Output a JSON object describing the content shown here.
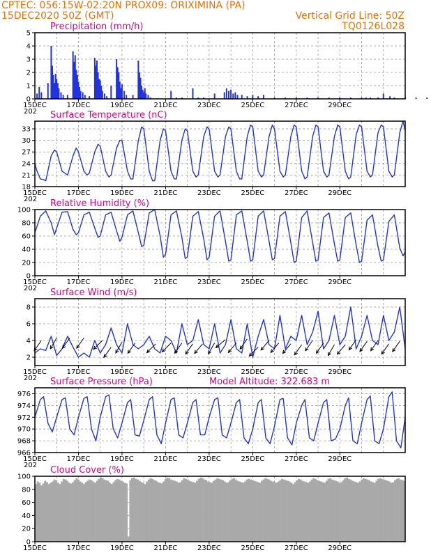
{
  "header": {
    "line1_left": "CPTEC:   056:15W-02:20N   PROX09: ORIXIMINA (PA)",
    "line2_left": "15DEC2020 50Z (GMT)",
    "line2_right": "Vertical Grid Line: 50Z",
    "line3_right": "TQ0126L028"
  },
  "colors": {
    "header": "#f07000",
    "panel_title": "#e0007f",
    "series": "#2233dd",
    "cloud": "#a9a9a9",
    "wind_arrow": "#000000"
  },
  "date_labels": [
    "15DEC",
    "17DEC",
    "19DEC",
    "21DEC",
    "23DEC",
    "25DEC",
    "27DEC",
    "29DEC"
  ],
  "year_fragment": "202",
  "panels": [
    {
      "id": "precip",
      "title": "Precipitation (mm/h)",
      "extra": ""
    },
    {
      "id": "temp",
      "title": "Surface Temperature (nC)",
      "extra": ""
    },
    {
      "id": "rh",
      "title": "Relative Humidity (%)",
      "extra": ""
    },
    {
      "id": "wind",
      "title": "Surface Wind (m/s)",
      "extra": ""
    },
    {
      "id": "pres",
      "title": "Surface Pressure (hPa)",
      "extra": "Model Altitude: 322.683 m"
    },
    {
      "id": "cloud",
      "title": "Cloud Cover (%)",
      "extra": ""
    }
  ],
  "chart_data": [
    {
      "type": "bar",
      "title": "Precipitation (mm/h)",
      "xlabel": "",
      "ylabel": "",
      "x_unit": "days since 15DEC2020 00Z",
      "ylim": [
        0,
        5
      ],
      "yticks": [
        0,
        1,
        2,
        3,
        4,
        5
      ],
      "x": [
        0.1,
        0.2,
        0.3,
        0.6,
        0.75,
        0.8,
        0.85,
        0.9,
        0.95,
        1.0,
        1.05,
        1.1,
        1.2,
        1.3,
        1.5,
        1.75,
        1.8,
        1.85,
        1.9,
        1.95,
        2.0,
        2.05,
        2.1,
        2.2,
        2.3,
        2.5,
        2.75,
        2.8,
        2.85,
        2.9,
        2.95,
        3.0,
        3.05,
        3.1,
        3.2,
        3.3,
        3.5,
        3.75,
        3.8,
        3.85,
        3.9,
        3.95,
        4.0,
        4.1,
        4.2,
        4.5,
        4.75,
        4.8,
        4.85,
        4.9,
        4.95,
        5.0,
        5.05,
        5.1,
        5.2,
        5.3,
        6.25,
        6.5,
        6.75,
        7.25,
        7.5,
        7.75,
        8.25,
        8.7,
        8.8,
        8.9,
        9.0,
        9.1,
        9.2,
        9.3,
        9.5,
        9.75,
        10.0,
        10.25,
        10.5,
        11.0,
        11.5,
        12.0,
        12.5,
        13.0,
        13.5,
        14.0,
        14.5,
        15.0,
        15.2,
        15.4,
        15.75,
        16.0,
        16.3,
        16.5,
        17.0,
        17.5,
        18.0,
        18.5,
        18.6,
        18.7
      ],
      "values": [
        0.4,
        0.9,
        0.5,
        1.2,
        4.0,
        2.5,
        1.8,
        1.2,
        1.9,
        1.5,
        1.2,
        0.8,
        0.5,
        0.3,
        0.3,
        3.6,
        2.8,
        3.3,
        2.2,
        1.8,
        1.3,
        0.9,
        0.6,
        0.5,
        0.3,
        0.2,
        3.1,
        2.5,
        2.9,
        2.0,
        1.5,
        1.4,
        1.0,
        0.6,
        0.4,
        0.2,
        1.0,
        3.0,
        2.4,
        2.0,
        1.3,
        0.8,
        1.1,
        0.6,
        0.3,
        0.3,
        2.9,
        2.0,
        1.6,
        1.0,
        0.7,
        0.5,
        0.8,
        0.4,
        0.3,
        0.1,
        0.6,
        0.1,
        0.1,
        0.8,
        0.1,
        0.1,
        0.4,
        0.5,
        0.8,
        0.6,
        0.7,
        0.4,
        0.5,
        0.3,
        0.3,
        0.2,
        0.3,
        0.2,
        0.3,
        0.1,
        0.1,
        0.1,
        0.1,
        0.1,
        0.1,
        0.1,
        0.1,
        0.1,
        0.1,
        0.1,
        0.1,
        0.4,
        0.2,
        0.1,
        0.1,
        0.1,
        0.1,
        0.4,
        0.9,
        0.5
      ]
    },
    {
      "type": "line",
      "title": "Surface Temperature (nC)",
      "xlabel": "",
      "ylabel": "",
      "x_unit": "days since 15DEC2020 00Z",
      "ylim": [
        18,
        35
      ],
      "yticks": [
        18,
        21,
        24,
        27,
        30,
        33
      ],
      "x": [
        0,
        0.1,
        0.25,
        0.4,
        0.5,
        0.75,
        0.9,
        1.0,
        1.25,
        1.5,
        1.75,
        1.9,
        2.0,
        2.25,
        2.4,
        2.5,
        2.75,
        2.9,
        3.0,
        3.25,
        3.4,
        3.5,
        3.75,
        3.9,
        4.0,
        4.25,
        4.4,
        4.5,
        4.75,
        4.9,
        5.0,
        5.25,
        5.4,
        5.5,
        5.75,
        5.9,
        6.0,
        6.25,
        6.4,
        6.5,
        6.75,
        6.9,
        7.0,
        7.25,
        7.4,
        7.5,
        7.75,
        7.9,
        8.0,
        8.25,
        8.4,
        8.5,
        8.75,
        8.9,
        9.0,
        9.25,
        9.4,
        9.5,
        9.75,
        9.9,
        10.0,
        10.25,
        10.4,
        10.5,
        10.75,
        10.9,
        11.0,
        11.25,
        11.4,
        11.5,
        11.75,
        11.9,
        12.0,
        12.25,
        12.4,
        12.5,
        12.75,
        12.9,
        13.0,
        13.25,
        13.4,
        13.5,
        13.75,
        13.9,
        14.0,
        14.25,
        14.4,
        14.5,
        14.75,
        14.9,
        15.0,
        15.25,
        15.4,
        15.5,
        15.75,
        15.9,
        16.0,
        16.25,
        16.4,
        16.5,
        16.75,
        16.9,
        17.0
      ],
      "values": [
        24,
        22,
        20,
        19.8,
        19.5,
        26,
        27.5,
        27,
        22,
        21,
        26,
        28,
        27,
        22,
        21,
        21.5,
        27,
        29,
        28.5,
        22,
        20.5,
        21,
        28,
        30,
        30,
        22,
        20,
        20,
        30,
        33.5,
        33,
        22,
        19.5,
        19.5,
        30,
        33,
        32.5,
        22,
        20,
        20,
        30,
        33,
        32.5,
        22,
        20.5,
        21,
        31,
        33.5,
        33,
        22,
        20.5,
        21,
        31,
        33.5,
        33,
        22,
        20,
        20,
        31,
        34,
        33.5,
        22,
        20.5,
        21,
        31,
        34,
        33,
        22,
        20.5,
        21,
        31,
        34,
        33.5,
        22,
        20,
        20.5,
        31,
        34,
        33.5,
        22,
        20.5,
        21,
        31,
        34,
        33.5,
        22,
        20,
        20.5,
        31.5,
        34,
        33.5,
        22,
        20.5,
        21,
        32,
        34,
        33.5,
        22,
        20.5,
        21,
        32,
        35,
        32.5
      ]
    },
    {
      "type": "line",
      "title": "Relative Humidity (%)",
      "xlabel": "",
      "ylabel": "",
      "x_unit": "days since 15DEC2020 00Z",
      "ylim": [
        0,
        100
      ],
      "yticks": [
        0,
        20,
        40,
        60,
        80,
        100
      ],
      "x": [
        0,
        0.25,
        0.5,
        0.75,
        0.9,
        1.0,
        1.25,
        1.5,
        1.75,
        1.9,
        2.0,
        2.25,
        2.5,
        2.75,
        2.9,
        3.0,
        3.25,
        3.5,
        3.75,
        3.9,
        4.0,
        4.25,
        4.5,
        4.75,
        4.9,
        5.0,
        5.25,
        5.5,
        5.75,
        5.9,
        6.0,
        6.25,
        6.5,
        6.75,
        6.9,
        7.0,
        7.25,
        7.5,
        7.75,
        7.9,
        8.0,
        8.25,
        8.5,
        8.75,
        8.9,
        9.0,
        9.25,
        9.5,
        9.75,
        9.9,
        10.0,
        10.25,
        10.5,
        10.75,
        10.9,
        11.0,
        11.25,
        11.5,
        11.75,
        11.9,
        12.0,
        12.25,
        12.5,
        12.75,
        12.9,
        13.0,
        13.25,
        13.5,
        13.75,
        13.9,
        14.0,
        14.25,
        14.5,
        14.75,
        14.9,
        15.0,
        15.25,
        15.5,
        15.75,
        15.9,
        16.0,
        16.25,
        16.5,
        16.75,
        16.9,
        17.0
      ],
      "values": [
        65,
        90,
        98,
        80,
        62,
        72,
        96,
        97,
        70,
        62,
        65,
        92,
        96,
        72,
        58,
        60,
        92,
        96,
        68,
        52,
        58,
        92,
        98,
        65,
        44,
        46,
        95,
        100,
        60,
        28,
        32,
        92,
        98,
        58,
        26,
        28,
        90,
        97,
        56,
        24,
        28,
        90,
        98,
        52,
        22,
        24,
        92,
        98,
        52,
        22,
        24,
        90,
        98,
        52,
        24,
        26,
        90,
        97,
        50,
        20,
        22,
        88,
        98,
        50,
        22,
        24,
        88,
        95,
        48,
        22,
        24,
        88,
        95,
        46,
        20,
        22,
        84,
        92,
        44,
        22,
        24,
        82,
        92,
        42,
        30,
        36
      ]
    },
    {
      "type": "line",
      "title": "Surface Wind (m/s)",
      "xlabel": "",
      "ylabel": "",
      "x_unit": "days since 15DEC2020 00Z",
      "ylim": [
        1,
        9
      ],
      "yticks": [
        2,
        4,
        6,
        8
      ],
      "x": [
        0,
        0.25,
        0.5,
        0.75,
        1.0,
        1.25,
        1.5,
        1.75,
        2.0,
        2.25,
        2.5,
        2.75,
        3.0,
        3.25,
        3.5,
        3.75,
        4.0,
        4.25,
        4.5,
        4.75,
        5.0,
        5.25,
        5.5,
        5.75,
        6.0,
        6.25,
        6.5,
        6.75,
        7.0,
        7.25,
        7.5,
        7.75,
        8.0,
        8.25,
        8.5,
        8.75,
        9.0,
        9.25,
        9.5,
        9.75,
        10.0,
        10.25,
        10.5,
        10.75,
        11.0,
        11.25,
        11.5,
        11.75,
        12.0,
        12.25,
        12.5,
        12.75,
        13.0,
        13.25,
        13.5,
        13.75,
        14.0,
        14.25,
        14.5,
        14.75,
        15.0,
        15.25,
        15.5,
        15.75,
        16.0,
        16.25,
        16.5,
        16.75,
        17.0
      ],
      "values": [
        2.5,
        3.0,
        2.8,
        4.5,
        2.2,
        3.0,
        4.5,
        3.2,
        2.0,
        2.5,
        2.0,
        4.0,
        2.5,
        3.5,
        5.5,
        3.5,
        2.5,
        6.0,
        3.5,
        3.0,
        3.5,
        4.5,
        3.0,
        2.5,
        4.5,
        4.0,
        2.5,
        6.0,
        3.5,
        4.0,
        6.5,
        3.5,
        3.0,
        6.0,
        2.5,
        3.5,
        6.5,
        3.0,
        2.5,
        6.0,
        2.0,
        4.5,
        6.5,
        3.5,
        3.0,
        7.0,
        3.0,
        4.5,
        4.0,
        7.0,
        3.5,
        5.0,
        7.5,
        3.0,
        4.0,
        7.0,
        3.5,
        4.5,
        8.0,
        3.0,
        4.5,
        7.0,
        4.0,
        3.5,
        7.0,
        4.0,
        5.0,
        8.0,
        3.0
      ],
      "arrows": {
        "x": [
          0.3,
          1.0,
          1.6,
          2.25,
          3.1,
          3.5,
          4.0,
          4.6,
          5.55,
          6.25,
          6.75,
          7.25,
          7.7,
          8.25,
          8.75,
          9.25,
          9.75,
          10.25,
          10.75,
          11.2,
          11.75,
          12.25,
          12.75,
          13.25,
          13.75,
          14.25,
          14.75,
          15.25,
          15.75,
          16.25,
          16.75
        ],
        "y": [
          4.0,
          4.3,
          4.3,
          4.3,
          4.0,
          3.2,
          3.8,
          3.7,
          3.6,
          3.7,
          3.7,
          3.6,
          3.6,
          3.7,
          4.1,
          3.7,
          4.2,
          3.2,
          4.0,
          3.7,
          3.6,
          3.5,
          4.0,
          3.7,
          3.5,
          3.5,
          4.1,
          3.9,
          4.0,
          3.6,
          3.9
        ],
        "dir_deg": [
          215,
          210,
          215,
          215,
          225,
          215,
          210,
          215,
          225,
          225,
          215,
          215,
          220,
          210,
          230,
          220,
          215,
          225,
          220,
          220,
          220,
          215,
          215,
          215,
          210,
          220,
          215,
          215,
          215,
          215,
          215
        ]
      }
    },
    {
      "type": "line",
      "title": "Surface Pressure (hPa)",
      "xlabel": "",
      "ylabel": "",
      "x_unit": "days since 15DEC2020 00Z",
      "ylim": [
        966,
        977
      ],
      "yticks": [
        966,
        968,
        970,
        972,
        974,
        976
      ],
      "x": [
        0,
        0.25,
        0.4,
        0.6,
        0.8,
        1.0,
        1.25,
        1.4,
        1.6,
        1.8,
        2.0,
        2.25,
        2.4,
        2.6,
        2.8,
        3.0,
        3.25,
        3.4,
        3.6,
        3.8,
        4.0,
        4.25,
        4.4,
        4.6,
        4.8,
        5.0,
        5.25,
        5.4,
        5.6,
        5.8,
        6.0,
        6.25,
        6.4,
        6.6,
        6.8,
        7.0,
        7.25,
        7.4,
        7.6,
        7.8,
        8.0,
        8.25,
        8.4,
        8.6,
        8.8,
        9.0,
        9.25,
        9.4,
        9.6,
        9.8,
        10.0,
        10.25,
        10.4,
        10.6,
        10.8,
        11.0,
        11.25,
        11.4,
        11.6,
        11.8,
        12.0,
        12.25,
        12.4,
        12.6,
        12.8,
        13.0,
        13.25,
        13.4,
        13.6,
        13.8,
        14.0,
        14.25,
        14.4,
        14.6,
        14.8,
        15.0,
        15.25,
        15.4,
        15.6,
        15.8,
        16.0,
        16.25,
        16.4,
        16.6,
        16.8,
        17.0
      ],
      "values": [
        972,
        975,
        975.5,
        971,
        969.5,
        972,
        975,
        975.3,
        970,
        969,
        972,
        975.2,
        975.5,
        970,
        968,
        972,
        975.5,
        975.8,
        970,
        968.5,
        971,
        974.5,
        975,
        969,
        968.8,
        971.5,
        975,
        975.5,
        969,
        967.5,
        971,
        975,
        975.3,
        969,
        968.5,
        971,
        974.5,
        975,
        969,
        969,
        972,
        975,
        975.3,
        969,
        968.5,
        971,
        974.5,
        975,
        968.5,
        967.5,
        970,
        974.5,
        975,
        968.5,
        967.5,
        970.5,
        975,
        975.2,
        968.5,
        967.3,
        971,
        974,
        975,
        968.5,
        968,
        971,
        974.5,
        975,
        968,
        968.3,
        970,
        974,
        975.3,
        968,
        967.5,
        971,
        975,
        975.6,
        968,
        967.5,
        970,
        975.5,
        976.3,
        968,
        966.8,
        972
      ]
    },
    {
      "type": "bar",
      "title": "Cloud Cover (%)",
      "xlabel": "",
      "ylabel": "",
      "x_unit": "days since 15DEC2020 00Z",
      "ylim": [
        0,
        100
      ],
      "yticks": [
        0,
        20,
        40,
        60,
        80,
        100
      ],
      "values": [
        88,
        92,
        90,
        86,
        89,
        93,
        91,
        88,
        90,
        92,
        95,
        94,
        90,
        88,
        92,
        96,
        95,
        93,
        90,
        89,
        91,
        94,
        97,
        95,
        92,
        90,
        88,
        91,
        93,
        95,
        94,
        92,
        90,
        93,
        96,
        98,
        97,
        95,
        94,
        93,
        90,
        88,
        91,
        94,
        96,
        95,
        93,
        92,
        90,
        89,
        8,
        94,
        97,
        98,
        96,
        95,
        93,
        91,
        90,
        88,
        92,
        95,
        97,
        96,
        94,
        93,
        91,
        90,
        89,
        92,
        96,
        98,
        97,
        95,
        94,
        93,
        92,
        90,
        91,
        94,
        97,
        96,
        95,
        93,
        92,
        91,
        90,
        93,
        96,
        98,
        97,
        95,
        94,
        92,
        91,
        90,
        93,
        95,
        97,
        96,
        95,
        94,
        92,
        90,
        91,
        94,
        96,
        97,
        95,
        93,
        92,
        91,
        90,
        92,
        95,
        96,
        95,
        94,
        93,
        92,
        91,
        90,
        93,
        95,
        97,
        96,
        95,
        93,
        92,
        91,
        90,
        92,
        94,
        96,
        95,
        94,
        93,
        92,
        90,
        88,
        91,
        94,
        96,
        95,
        93,
        92,
        91,
        90,
        92,
        95,
        97,
        96,
        94,
        93,
        92,
        91,
        90,
        93,
        96,
        97,
        95,
        94,
        93,
        92,
        90,
        91,
        94,
        97,
        98,
        96,
        95,
        93,
        92,
        91,
        90,
        92,
        95,
        97,
        96,
        95,
        94,
        92,
        91,
        90,
        93,
        96,
        97,
        96,
        95,
        94,
        93,
        92,
        90,
        91,
        94,
        96,
        97,
        95,
        94,
        93
      ]
    }
  ]
}
